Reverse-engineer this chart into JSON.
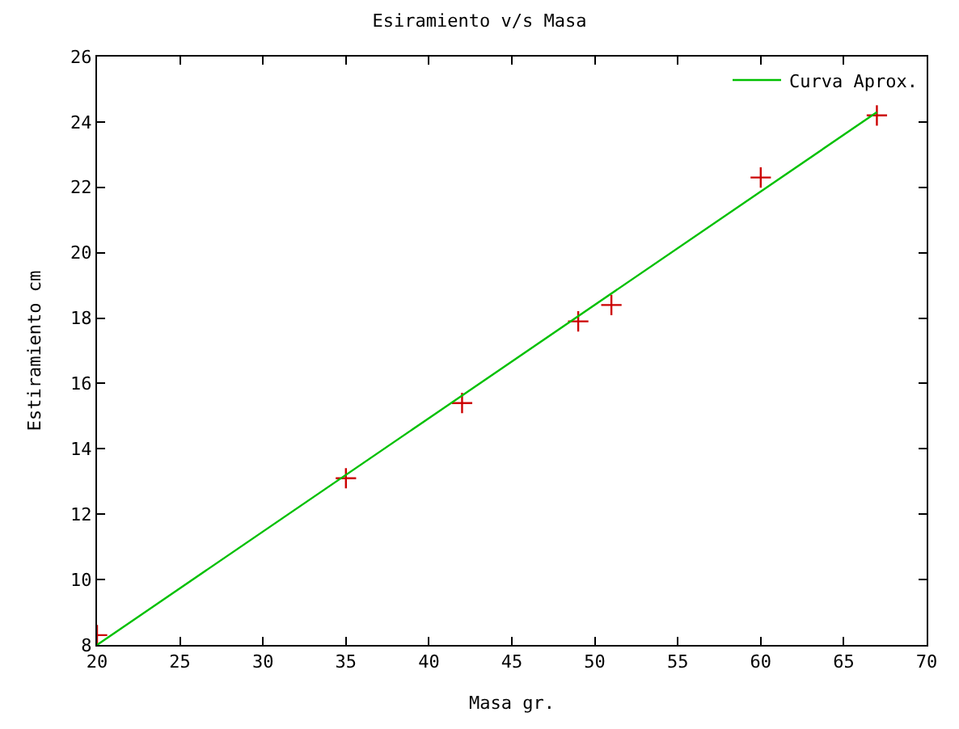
{
  "chart_data": {
    "type": "scatter",
    "title": "Esiramiento v/s Masa",
    "xlabel": "Masa gr.",
    "ylabel": "Estiramiento cm",
    "xlim": [
      20,
      70
    ],
    "xticks": [
      20,
      25,
      30,
      35,
      40,
      45,
      50,
      55,
      60,
      65,
      70
    ],
    "ylim": [
      8,
      26
    ],
    "yticks": [
      8,
      10,
      12,
      14,
      16,
      18,
      20,
      22,
      24,
      26
    ],
    "grid": false,
    "legend": "top right",
    "series": [
      {
        "color": "#cc0000",
        "marker": "cross",
        "x": [
          20,
          35,
          42,
          49,
          51,
          60,
          67
        ],
        "values": [
          8.3,
          13.1,
          15.4,
          17.9,
          18.4,
          22.3,
          24.2
        ]
      },
      {
        "type": "line",
        "name": "Curva Aprox.",
        "color": "#00c000",
        "line_style": "solid",
        "x": [
          20,
          67
        ],
        "values": [
          8.0,
          24.3
        ]
      }
    ]
  }
}
